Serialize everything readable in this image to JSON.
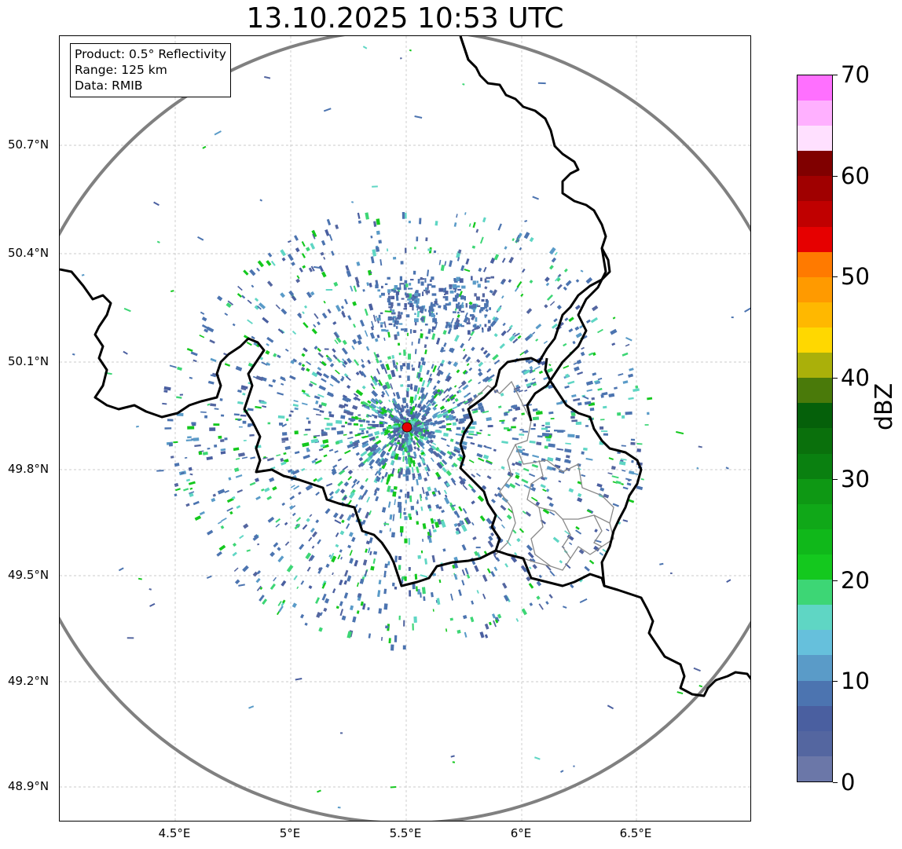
{
  "title": "13.10.2025 10:53 UTC",
  "info": {
    "product": "Product: 0.5° Reflectivity",
    "range": "Range: 125 km",
    "data": "Data: RMIB"
  },
  "axes": {
    "lat_ticks": [
      "50.7°N",
      "50.4°N",
      "50.1°N",
      "49.8°N",
      "49.5°N",
      "49.2°N",
      "48.9°N"
    ],
    "lon_ticks": [
      "4.5°E",
      "5°E",
      "5.5°E",
      "6°E",
      "6.5°E"
    ]
  },
  "colorbar": {
    "label": "dBZ",
    "tick_labels": [
      "0",
      "10",
      "20",
      "30",
      "40",
      "50",
      "60",
      "70"
    ],
    "colors": [
      "#6b77a8",
      "#5466a0",
      "#4a5fa0",
      "#4c74b0",
      "#5a9bc8",
      "#66c0dc",
      "#5fd6c4",
      "#3dd675",
      "#14c81e",
      "#10b81a",
      "#10a818",
      "#0e9814",
      "#0a8010",
      "#0a700c",
      "#05600a",
      "#4a7a0a",
      "#aab00a",
      "#ffd800",
      "#ffb800",
      "#ff9a00",
      "#ff7a00",
      "#e60000",
      "#c00000",
      "#a00000",
      "#800000",
      "#ffe0ff",
      "#ffb0ff",
      "#ff70ff",
      "#ee33ee"
    ]
  },
  "radar": {
    "site": "radar-site-marker",
    "marker_color": "#e60000"
  }
}
